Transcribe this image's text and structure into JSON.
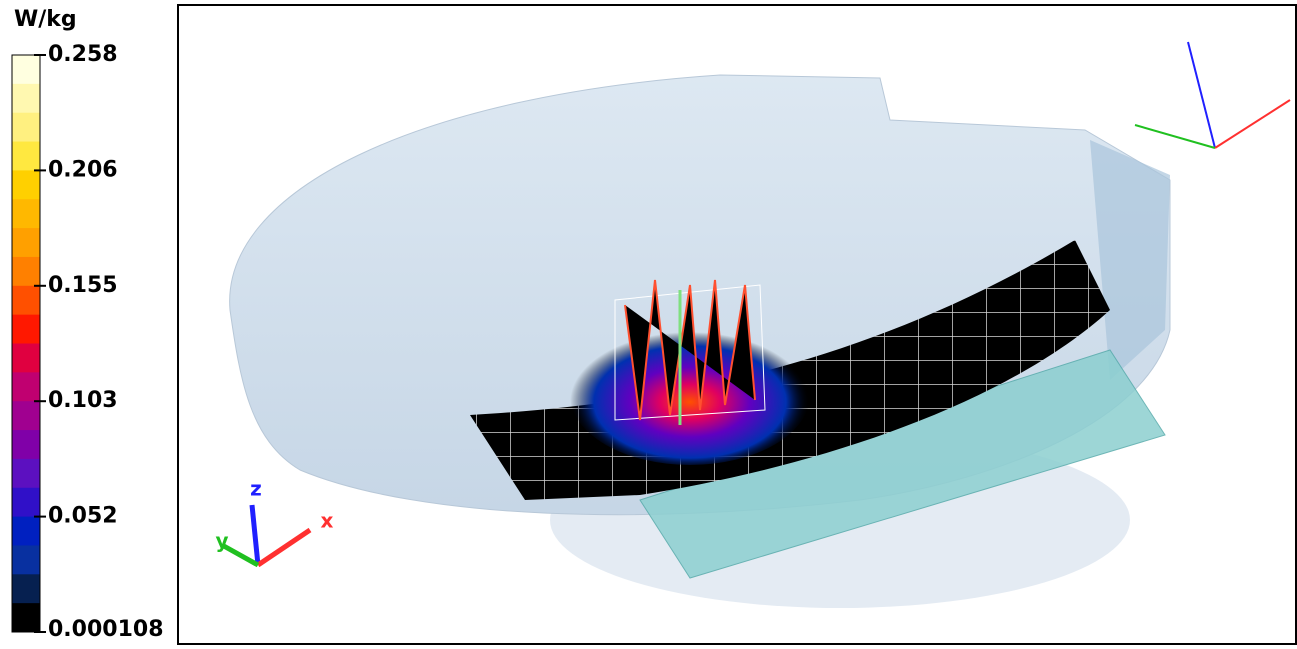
{
  "colorbar": {
    "unit": "W/kg",
    "labels": [
      "0.258",
      "0.206",
      "0.155",
      "0.103",
      "0.052",
      "0.000108"
    ]
  },
  "axes_triad": {
    "x": "x",
    "y": "y",
    "z": "z"
  }
}
